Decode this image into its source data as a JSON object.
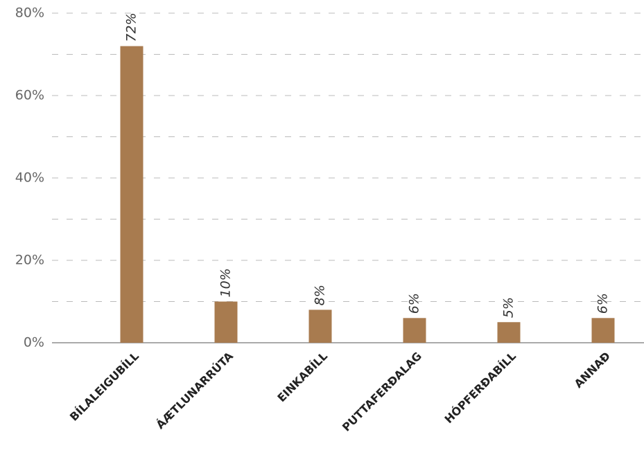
{
  "chart_data": {
    "type": "bar",
    "categories": [
      "BÍLALEIGUBÍLL",
      "ÁÆTLUNARRÚTA",
      "EINKABÍLL",
      "PUTTAFERÐALAG",
      "HÓPFERÐABÍLL",
      "ANNAÐ"
    ],
    "values": [
      72,
      10,
      8,
      6,
      5,
      6
    ],
    "value_labels": [
      "72%",
      "10%",
      "8%",
      "6%",
      "5%",
      "6%"
    ],
    "color": "#a87b4f",
    "ylim": [
      0,
      80
    ],
    "yticks": [
      {
        "value": 0,
        "label": "0%"
      },
      {
        "value": 20,
        "label": "20%"
      },
      {
        "value": 40,
        "label": "40%"
      },
      {
        "value": 60,
        "label": "60%"
      },
      {
        "value": 80,
        "label": "80%"
      }
    ],
    "minor_yticks": [
      10,
      30,
      50,
      70
    ],
    "grid": true
  }
}
